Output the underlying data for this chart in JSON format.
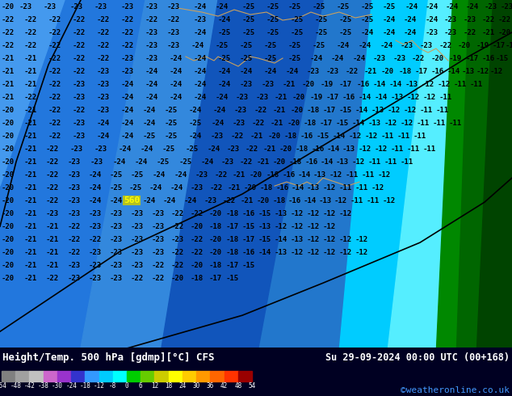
{
  "title_left": "Height/Temp. 500 hPa [gdmp][°C] CFS",
  "title_right": "Su 29-09-2024 00:00 UTC (00+168)",
  "credit": "©weatheronline.co.uk",
  "colorbar_colors": [
    "#808080",
    "#a0a0a0",
    "#c0c0c0",
    "#cc66cc",
    "#9933cc",
    "#3333cc",
    "#3399ff",
    "#00ccff",
    "#00ffff",
    "#00cc00",
    "#66cc00",
    "#cccc00",
    "#ffff00",
    "#ffcc00",
    "#ff9900",
    "#ff6600",
    "#ff3300",
    "#990000"
  ],
  "colorbar_labels": [
    "-54",
    "-48",
    "-42",
    "-38",
    "-30",
    "-24",
    "-18",
    "-12",
    "-8",
    "0",
    "6",
    "12",
    "18",
    "24",
    "30",
    "36",
    "42",
    "48",
    "54"
  ],
  "bg_deep_blue": "#1a5bc4",
  "bg_medium_blue": "#2a7ad4",
  "bg_light_blue": "#4499e8",
  "bg_cyan": "#00ccff",
  "bg_light_cyan": "#55ddff",
  "bg_dark_green": "#005500",
  "bg_medium_green": "#007700",
  "bg_light_green": "#009900",
  "bottom_bg": "#000022",
  "title_color": "#ffffff",
  "credit_color": "#4499ff"
}
